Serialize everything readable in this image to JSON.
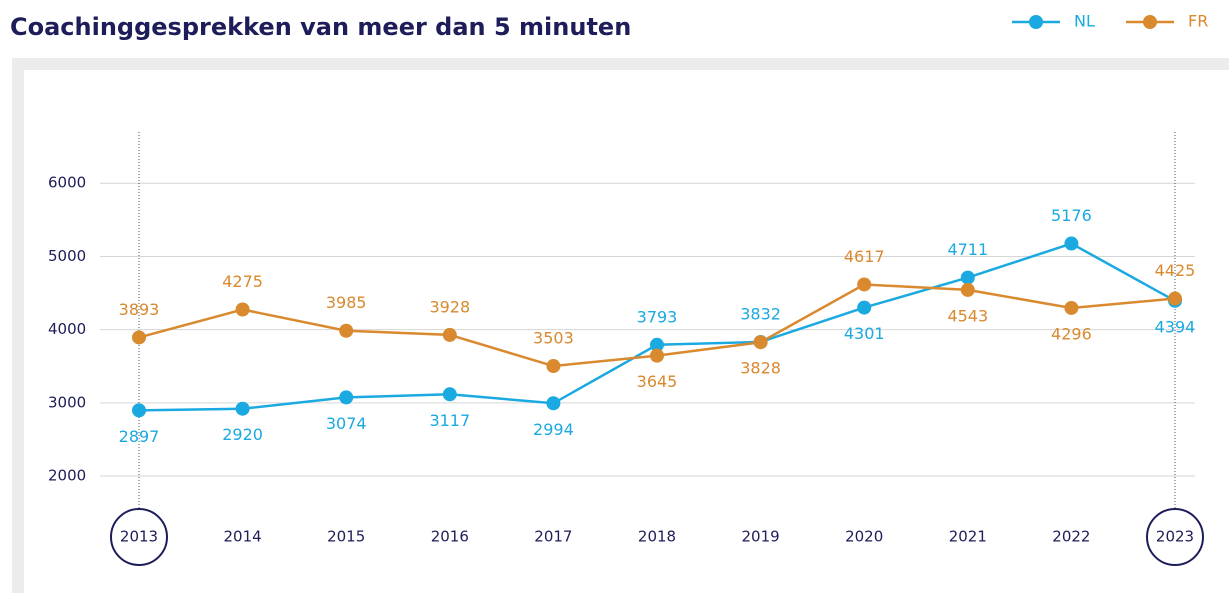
{
  "chart_data": {
    "type": "line",
    "title": "Coachinggesprekken van meer dan 5 minuten",
    "categories": [
      "2013",
      "2014",
      "2015",
      "2016",
      "2017",
      "2018",
      "2019",
      "2020",
      "2021",
      "2022",
      "2023"
    ],
    "series": [
      {
        "name": "NL",
        "color": "#1aa9e0",
        "values": [
          2897,
          2920,
          3074,
          3117,
          2994,
          3793,
          3832,
          4301,
          4711,
          5176,
          4394
        ]
      },
      {
        "name": "FR",
        "color": "#d9892e",
        "values": [
          3893,
          4275,
          3985,
          3928,
          3503,
          3645,
          3828,
          4617,
          4543,
          4296,
          4425
        ]
      }
    ],
    "ylim": [
      1700,
      6700
    ],
    "yticks": [
      2000,
      3000,
      4000,
      5000,
      6000
    ],
    "grid": true,
    "legend": "top-right"
  }
}
